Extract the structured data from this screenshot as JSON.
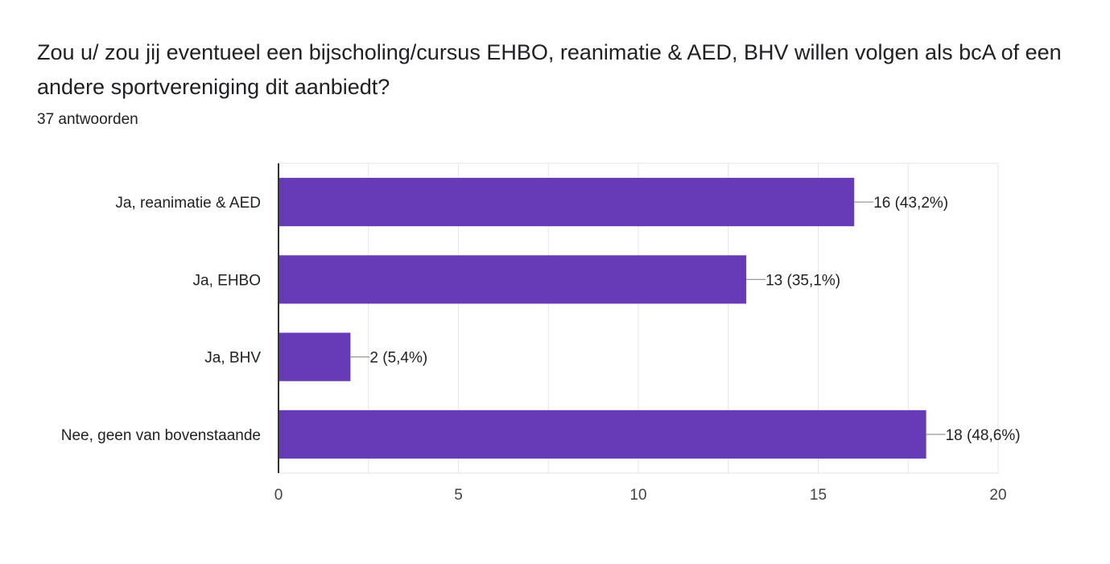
{
  "question": {
    "title": "Zou u/ zou jij eventueel een bijscholing/cursus EHBO, reanimatie & AED, BHV willen volgen als bcA of een andere sportvereniging dit aanbiedt?",
    "responses": "37 antwoorden"
  },
  "colors": {
    "bar": "#673ab7",
    "grid": "#e6e6e6",
    "axis": "#333333",
    "leader": "#999999"
  },
  "chart_data": {
    "type": "bar",
    "orientation": "horizontal",
    "categories": [
      "Ja, reanimatie & AED",
      "Ja, EHBO",
      "Ja, BHV",
      "Nee, geen van bovenstaande"
    ],
    "values": [
      16,
      13,
      2,
      18
    ],
    "data_labels": [
      "16 (43,2%)",
      "13 (35,1%)",
      "2 (5,4%)",
      "18 (48,6%)"
    ],
    "xlim": [
      0,
      20
    ],
    "xticks": [
      0,
      5,
      10,
      15,
      20
    ],
    "xticklabels": [
      "0",
      "5",
      "10",
      "15",
      "20"
    ],
    "grid": true,
    "legend": "none"
  }
}
